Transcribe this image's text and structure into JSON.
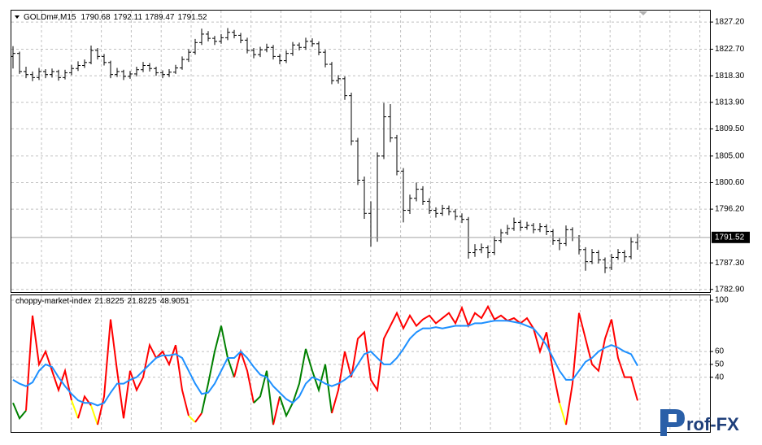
{
  "chart_data": [
    {
      "type": "ohlc",
      "title": "GOLDm#,M15",
      "color": "#000000",
      "grid": true,
      "ylim": [
        1782.6,
        1829.1
      ],
      "yticks": [
        {
          "value": 1827.2,
          "label": "1827.20"
        },
        {
          "value": 1822.7,
          "label": "1822.70"
        },
        {
          "value": 1818.3,
          "label": "1818.30"
        },
        {
          "value": 1813.9,
          "label": "1813.90"
        },
        {
          "value": 1809.5,
          "label": "1809.50"
        },
        {
          "value": 1805.0,
          "label": "1805.00"
        },
        {
          "value": 1800.6,
          "label": "1800.60"
        },
        {
          "value": 1796.2,
          "label": "1796.20"
        },
        {
          "value": 1787.3,
          "label": "1787.30"
        },
        {
          "value": 1782.9,
          "label": "1782.90"
        }
      ],
      "bars": [
        [
          1821.5,
          1823.2,
          1819.5,
          1822.0
        ],
        [
          1822.0,
          1822.3,
          1818.6,
          1819.0
        ],
        [
          1819.0,
          1819.8,
          1817.9,
          1818.5
        ],
        [
          1818.5,
          1819.0,
          1817.4,
          1818.0
        ],
        [
          1818.0,
          1819.6,
          1817.6,
          1819.0
        ],
        [
          1819.0,
          1819.4,
          1817.9,
          1818.5
        ],
        [
          1818.5,
          1819.5,
          1818.0,
          1819.0
        ],
        [
          1819.0,
          1819.3,
          1817.5,
          1818.0
        ],
        [
          1818.0,
          1819.3,
          1817.7,
          1818.8
        ],
        [
          1818.8,
          1820.1,
          1818.4,
          1819.5
        ],
        [
          1819.5,
          1820.7,
          1819.1,
          1820.0
        ],
        [
          1820.0,
          1821.0,
          1819.6,
          1820.5
        ],
        [
          1820.5,
          1823.3,
          1820.2,
          1822.5
        ],
        [
          1822.5,
          1822.9,
          1821.0,
          1821.5
        ],
        [
          1821.5,
          1821.9,
          1820.0,
          1820.5
        ],
        [
          1820.5,
          1820.8,
          1817.9,
          1818.5
        ],
        [
          1818.5,
          1819.6,
          1818.1,
          1819.0
        ],
        [
          1819.0,
          1819.3,
          1817.6,
          1818.2
        ],
        [
          1818.2,
          1819.1,
          1817.8,
          1818.6
        ],
        [
          1818.6,
          1819.8,
          1818.2,
          1819.3
        ],
        [
          1819.3,
          1820.6,
          1818.9,
          1820.0
        ],
        [
          1820.0,
          1820.4,
          1819.0,
          1819.5
        ],
        [
          1819.5,
          1819.8,
          1818.3,
          1818.8
        ],
        [
          1818.8,
          1819.2,
          1817.9,
          1818.5
        ],
        [
          1818.5,
          1819.4,
          1818.1,
          1818.9
        ],
        [
          1818.9,
          1820.1,
          1818.6,
          1819.6
        ],
        [
          1819.6,
          1821.5,
          1819.3,
          1821.0
        ],
        [
          1821.0,
          1822.7,
          1820.6,
          1822.2
        ],
        [
          1822.2,
          1824.4,
          1821.8,
          1823.8
        ],
        [
          1823.8,
          1826.1,
          1823.4,
          1825.2
        ],
        [
          1825.2,
          1825.7,
          1824.0,
          1824.5
        ],
        [
          1824.5,
          1824.9,
          1823.4,
          1824.0
        ],
        [
          1824.0,
          1825.2,
          1823.6,
          1824.6
        ],
        [
          1824.6,
          1826.2,
          1824.2,
          1825.5
        ],
        [
          1825.5,
          1825.9,
          1824.5,
          1825.0
        ],
        [
          1825.0,
          1825.4,
          1823.7,
          1824.2
        ],
        [
          1824.2,
          1824.6,
          1822.0,
          1822.5
        ],
        [
          1822.5,
          1822.9,
          1821.2,
          1821.8
        ],
        [
          1821.8,
          1823.1,
          1821.4,
          1822.6
        ],
        [
          1822.6,
          1823.6,
          1822.2,
          1823.0
        ],
        [
          1823.0,
          1823.4,
          1821.0,
          1821.5
        ],
        [
          1821.5,
          1821.9,
          1820.2,
          1820.8
        ],
        [
          1820.8,
          1822.5,
          1820.4,
          1822.0
        ],
        [
          1822.0,
          1823.9,
          1821.6,
          1823.4
        ],
        [
          1823.4,
          1823.8,
          1822.5,
          1823.0
        ],
        [
          1823.0,
          1824.6,
          1822.6,
          1824.0
        ],
        [
          1824.0,
          1824.5,
          1823.1,
          1823.6
        ],
        [
          1823.6,
          1824.0,
          1821.7,
          1822.2
        ],
        [
          1822.2,
          1822.6,
          1819.7,
          1820.2
        ],
        [
          1820.2,
          1820.6,
          1816.9,
          1817.5
        ],
        [
          1817.5,
          1818.4,
          1817.0,
          1817.8
        ],
        [
          1817.8,
          1818.2,
          1814.3,
          1815.0
        ],
        [
          1815.0,
          1815.5,
          1806.8,
          1807.5
        ],
        [
          1807.5,
          1808.0,
          1800.2,
          1801.0
        ],
        [
          1801.0,
          1801.6,
          1794.6,
          1795.5
        ],
        [
          1795.5,
          1797.5,
          1790.0,
          1791.5
        ],
        [
          1791.5,
          1805.6,
          1790.8,
          1805.0
        ],
        [
          1805.0,
          1813.8,
          1804.5,
          1811.5
        ],
        [
          1811.5,
          1813.6,
          1807.3,
          1808.0
        ],
        [
          1808.0,
          1808.5,
          1801.8,
          1802.5
        ],
        [
          1802.5,
          1803.0,
          1794.0,
          1796.0
        ],
        [
          1796.0,
          1798.6,
          1795.4,
          1798.0
        ],
        [
          1798.0,
          1800.6,
          1797.5,
          1799.5
        ],
        [
          1799.5,
          1800.0,
          1796.9,
          1797.5
        ],
        [
          1797.5,
          1798.0,
          1795.4,
          1796.0
        ],
        [
          1796.0,
          1796.5,
          1794.8,
          1795.5
        ],
        [
          1795.5,
          1796.9,
          1795.1,
          1796.3
        ],
        [
          1796.3,
          1796.8,
          1795.2,
          1795.8
        ],
        [
          1795.8,
          1796.2,
          1794.4,
          1795.0
        ],
        [
          1795.0,
          1795.5,
          1793.9,
          1794.5
        ],
        [
          1794.5,
          1794.9,
          1788.0,
          1789.0
        ],
        [
          1789.0,
          1790.4,
          1788.3,
          1789.5
        ],
        [
          1789.5,
          1790.5,
          1788.9,
          1789.8
        ],
        [
          1789.8,
          1790.2,
          1788.1,
          1789.0
        ],
        [
          1789.0,
          1791.7,
          1788.6,
          1791.0
        ],
        [
          1791.0,
          1792.9,
          1790.6,
          1792.3
        ],
        [
          1792.3,
          1793.6,
          1791.9,
          1793.0
        ],
        [
          1793.0,
          1794.8,
          1792.6,
          1794.0
        ],
        [
          1794.0,
          1794.4,
          1792.6,
          1793.2
        ],
        [
          1793.2,
          1794.1,
          1792.8,
          1793.5
        ],
        [
          1793.5,
          1793.9,
          1792.2,
          1792.8
        ],
        [
          1792.8,
          1793.9,
          1792.4,
          1793.3
        ],
        [
          1793.3,
          1793.7,
          1791.9,
          1792.5
        ],
        [
          1792.5,
          1792.9,
          1790.3,
          1791.0
        ],
        [
          1791.0,
          1791.4,
          1789.4,
          1790.5
        ],
        [
          1790.5,
          1793.5,
          1790.1,
          1792.8
        ],
        [
          1792.8,
          1793.2,
          1790.9,
          1791.5
        ],
        [
          1791.5,
          1791.9,
          1788.7,
          1789.5
        ],
        [
          1789.5,
          1789.9,
          1786.0,
          1787.5
        ],
        [
          1787.5,
          1789.6,
          1787.1,
          1789.0
        ],
        [
          1789.0,
          1789.4,
          1787.2,
          1787.8
        ],
        [
          1787.8,
          1788.2,
          1785.6,
          1786.5
        ],
        [
          1786.5,
          1788.8,
          1786.1,
          1788.2
        ],
        [
          1788.2,
          1789.6,
          1787.8,
          1789.0
        ],
        [
          1789.0,
          1789.4,
          1787.4,
          1788.3
        ],
        [
          1788.3,
          1791.6,
          1787.9,
          1790.8
        ],
        [
          1790.68,
          1792.11,
          1789.47,
          1791.52
        ]
      ]
    },
    {
      "type": "line",
      "title": "choppy-market-index",
      "grid": true,
      "ylim": [
        -2,
        104.4
      ],
      "yticks": [
        100,
        60,
        50,
        40
      ],
      "series": [
        {
          "palette": [
            "#ff0000",
            "#008000",
            "#ffff00"
          ],
          "segment_colors": [
            1,
            1,
            1,
            0,
            0,
            0,
            0,
            0,
            0,
            0,
            2,
            0,
            0,
            2,
            0,
            0,
            0,
            0,
            0,
            0,
            0,
            0,
            0,
            0,
            0,
            0,
            0,
            0,
            2,
            0,
            1,
            1,
            1,
            1,
            1,
            0,
            0,
            0,
            1,
            1,
            1,
            0,
            1,
            1,
            1,
            1,
            1,
            1,
            1,
            1,
            0,
            0,
            0,
            0,
            0,
            0,
            0,
            0,
            0,
            0,
            0,
            0,
            0,
            0,
            0,
            0,
            0,
            0,
            0,
            0,
            0,
            0,
            0,
            0,
            0,
            0,
            0,
            0,
            0,
            0,
            0,
            0,
            0,
            0,
            0,
            2,
            0,
            0,
            0,
            0,
            0,
            0,
            0,
            0,
            0,
            0,
            0
          ],
          "values": [
            20,
            8,
            14,
            88,
            50,
            60,
            45,
            30,
            45,
            22,
            8,
            25,
            18,
            3,
            25,
            85,
            45,
            8,
            45,
            30,
            40,
            65,
            55,
            60,
            50,
            65,
            30,
            10,
            5,
            12,
            35,
            60,
            80,
            55,
            40,
            60,
            45,
            20,
            25,
            45,
            3,
            25,
            10,
            20,
            35,
            62,
            45,
            30,
            50,
            12,
            30,
            60,
            40,
            70,
            75,
            38,
            30,
            70,
            80,
            90,
            78,
            88,
            80,
            85,
            88,
            82,
            86,
            90,
            82,
            94,
            80,
            90,
            86,
            95,
            85,
            88,
            84,
            86,
            82,
            86,
            78,
            60,
            75,
            45,
            20,
            3,
            35,
            90,
            70,
            50,
            45,
            70,
            85,
            55,
            40,
            40,
            21.8225
          ]
        },
        {
          "color": "#1e90ff",
          "values": [
            38,
            35,
            33,
            36,
            45,
            50,
            48,
            40,
            33,
            27,
            22,
            20,
            20,
            18,
            20,
            28,
            35,
            35,
            38,
            40,
            45,
            50,
            55,
            57,
            57,
            58,
            55,
            45,
            35,
            27,
            28,
            35,
            45,
            55,
            55,
            60,
            55,
            48,
            42,
            40,
            33,
            28,
            23,
            20,
            25,
            35,
            40,
            38,
            35,
            33,
            35,
            38,
            42,
            50,
            58,
            60,
            55,
            50,
            50,
            55,
            62,
            70,
            75,
            78,
            78,
            79,
            78,
            79,
            80,
            80,
            80,
            82,
            82,
            83,
            84,
            84,
            84,
            83,
            82,
            80,
            78,
            72,
            65,
            55,
            45,
            38,
            38,
            45,
            52,
            55,
            60,
            63,
            65,
            63,
            60,
            58,
            48.9051
          ]
        }
      ]
    }
  ],
  "watermark": "rof-FX"
}
